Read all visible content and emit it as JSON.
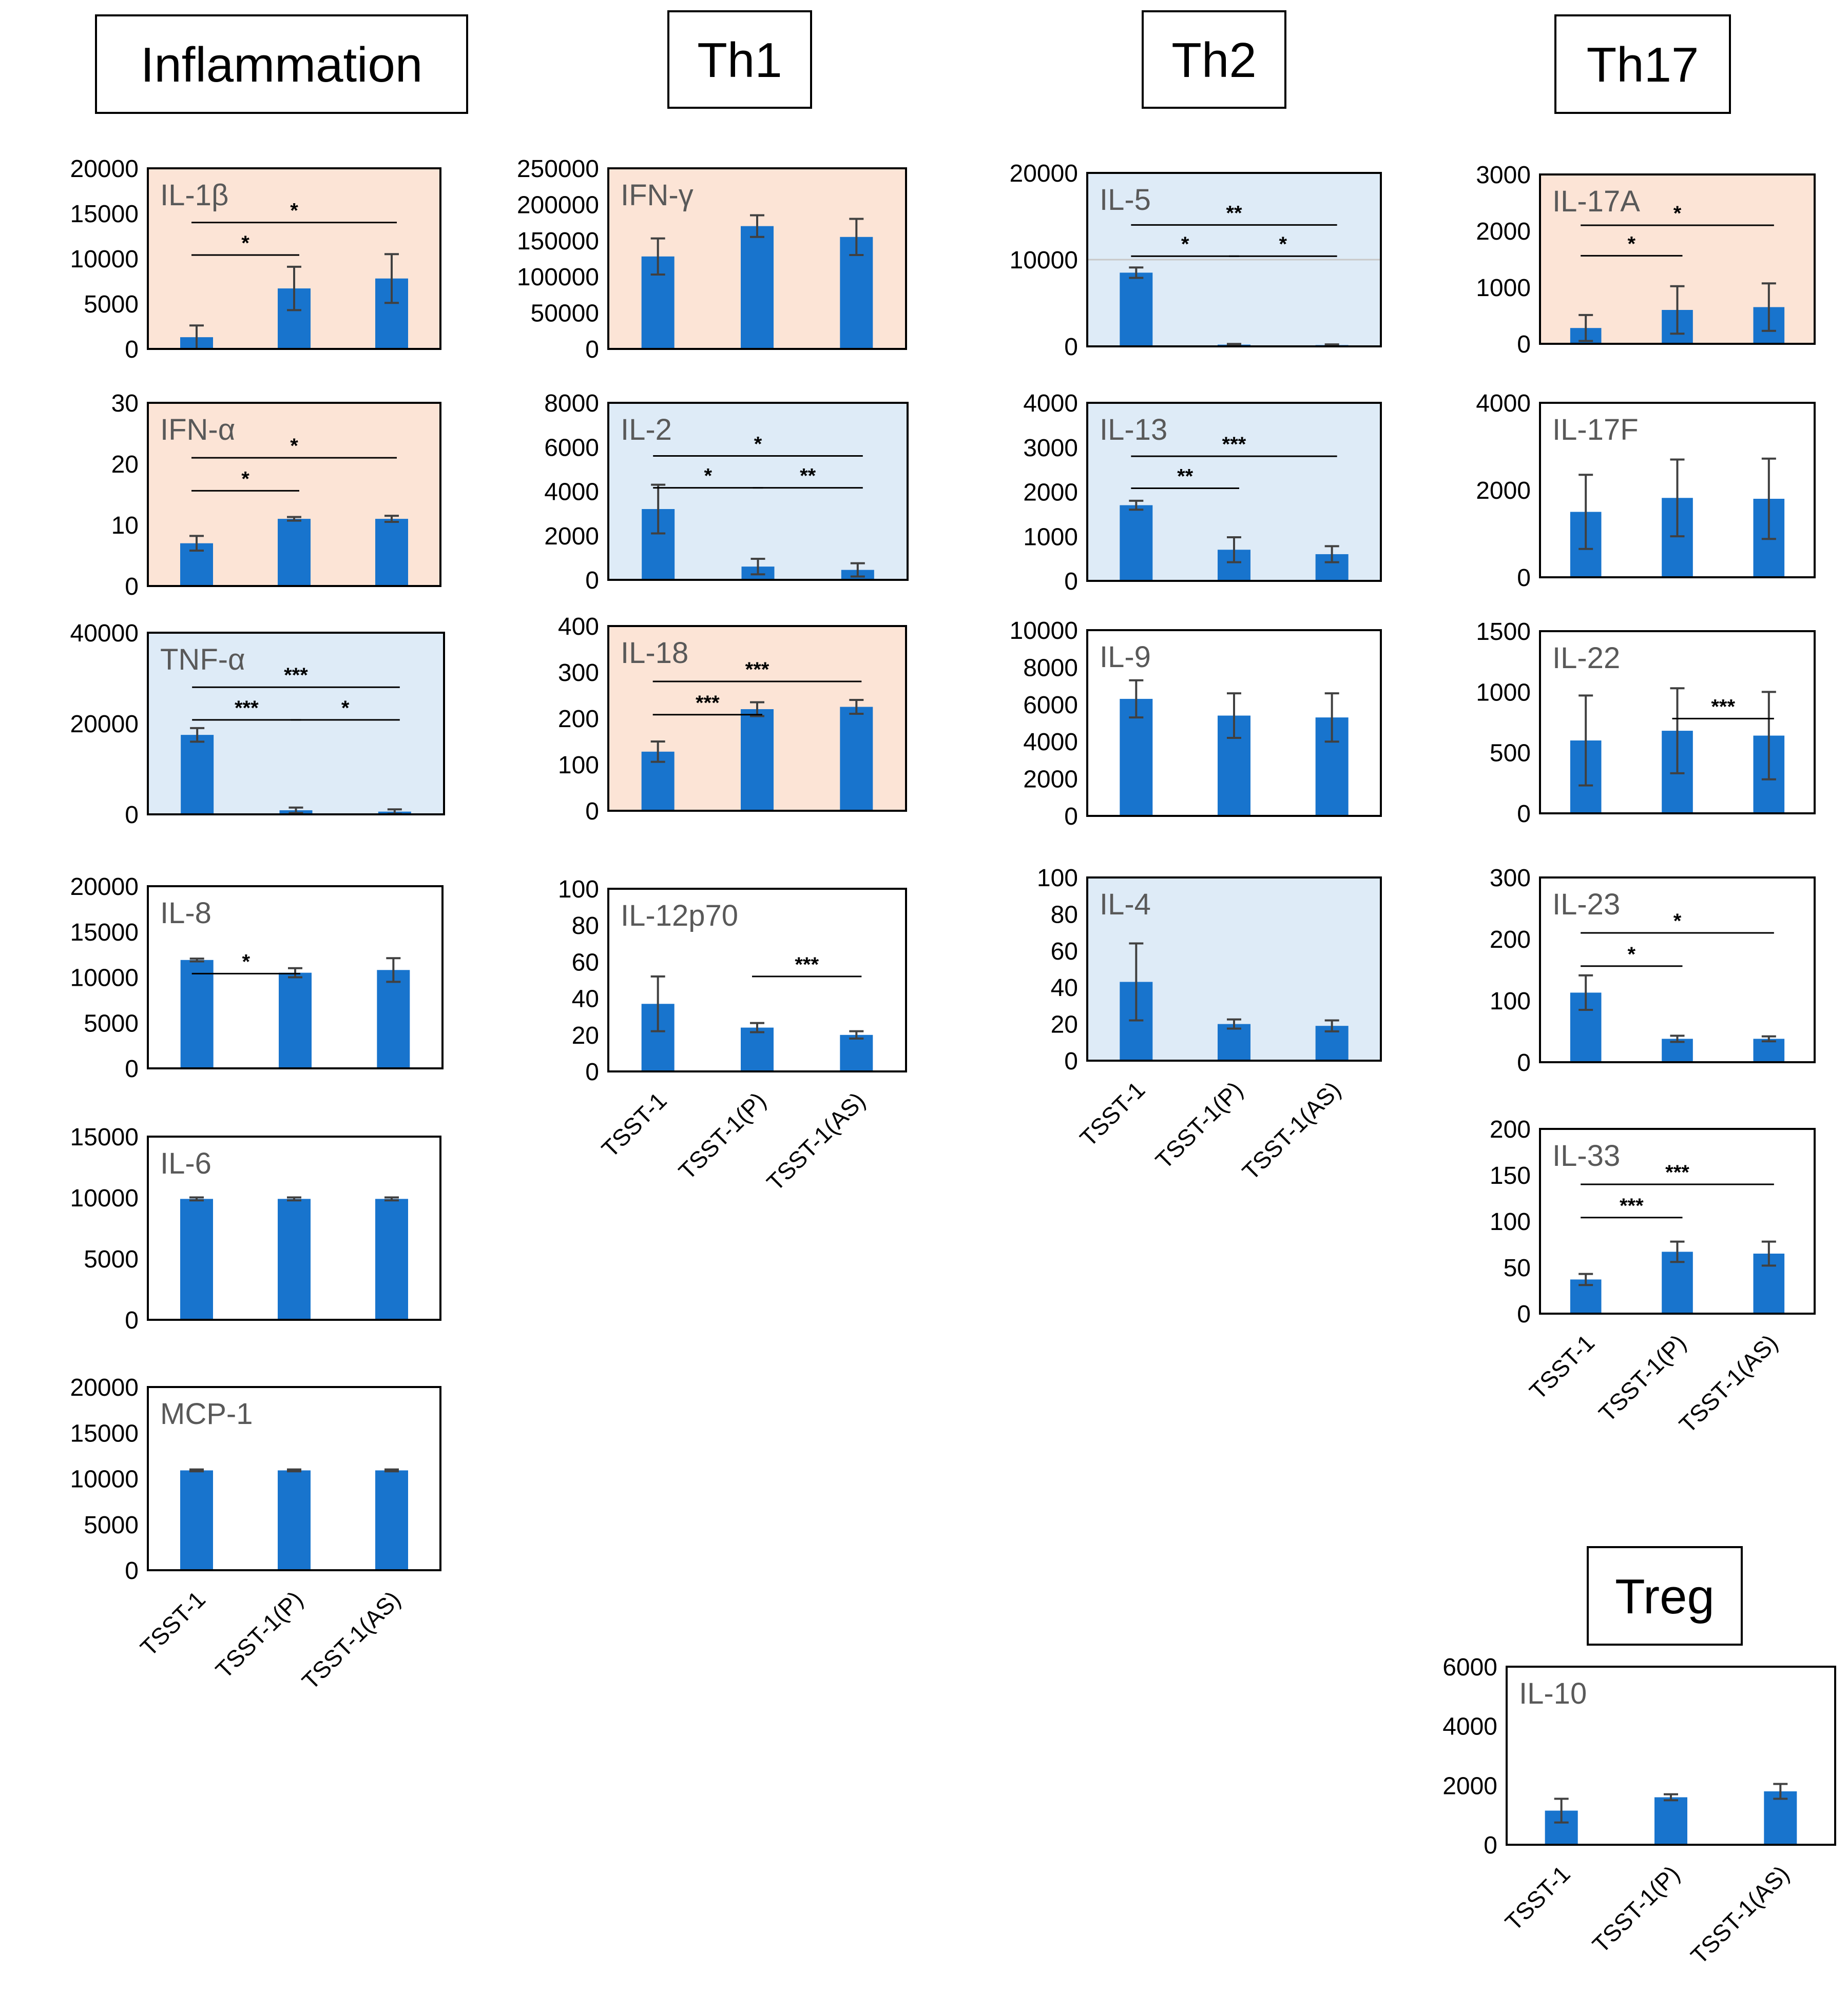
{
  "colors": {
    "bar": "#1874CD",
    "inflammatory_bg": "#FCE4D6",
    "regulatory_bg": "#DEEBF7",
    "plain_bg": "#FFFFFF",
    "frame": "#000000",
    "panel_label": "#595959",
    "axis_text": "#000000",
    "error_bar": "#404040"
  },
  "headers": [
    {
      "id": "inflammation",
      "label": "Inflammation"
    },
    {
      "id": "th1",
      "label": "Th1"
    },
    {
      "id": "th2",
      "label": "Th2"
    },
    {
      "id": "th17",
      "label": "Th17"
    },
    {
      "id": "treg",
      "label": "Treg"
    }
  ],
  "category_label_sets": [
    {
      "column": "inflammation",
      "labels": [
        "TSST-1",
        "TSST-1(P)",
        "TSST-1(AS)"
      ]
    },
    {
      "column": "th1",
      "labels": [
        "TSST-1",
        "TSST-1(P)",
        "TSST-1(AS)"
      ]
    },
    {
      "column": "th2",
      "labels": [
        "TSST-1",
        "TSST-1(P)",
        "TSST-1(AS)"
      ]
    },
    {
      "column": "th17",
      "labels": [
        "TSST-1",
        "TSST-1(P)",
        "TSST-1(AS)"
      ]
    },
    {
      "column": "treg",
      "labels": [
        "TSST-1",
        "TSST-1(P)",
        "TSST-1(AS)"
      ]
    }
  ],
  "chart_data": [
    {
      "type": "bar",
      "column": "inflammation",
      "title": "IL-1β",
      "background": "inflammatory",
      "categories": [
        "TSST-1",
        "TSST-1(P)",
        "TSST-1(AS)"
      ],
      "values": [
        1300,
        6700,
        7800
      ],
      "errors": [
        1300,
        2400,
        2700
      ],
      "ylim": [
        0,
        20000
      ],
      "yticks": [
        0,
        5000,
        10000,
        15000,
        20000
      ],
      "significance": [
        {
          "from": 0,
          "to": 1,
          "label": "*"
        },
        {
          "from": 0,
          "to": 2,
          "label": "*"
        }
      ]
    },
    {
      "type": "bar",
      "column": "inflammation",
      "title": "IFN-α",
      "background": "inflammatory",
      "categories": [
        "TSST-1",
        "TSST-1(P)",
        "TSST-1(AS)"
      ],
      "values": [
        7,
        11,
        11
      ],
      "errors": [
        1.2,
        0.3,
        0.5
      ],
      "ylim": [
        0,
        30
      ],
      "yticks": [
        0,
        10,
        20,
        30
      ],
      "significance": [
        {
          "from": 0,
          "to": 1,
          "label": "*"
        },
        {
          "from": 0,
          "to": 2,
          "label": "*"
        }
      ]
    },
    {
      "type": "bar",
      "column": "inflammation",
      "title": "TNF-α",
      "background": "regulatory",
      "categories": [
        "TSST-1",
        "TSST-1(P)",
        "TSST-1(AS)"
      ],
      "values": [
        17500,
        900,
        600
      ],
      "errors": [
        1500,
        600,
        500
      ],
      "ylim": [
        0,
        40000
      ],
      "yticks": [
        0,
        20000,
        40000
      ],
      "significance": [
        {
          "from": 0,
          "to": 1,
          "label": "***"
        },
        {
          "from": 1,
          "to": 2,
          "label": "*"
        },
        {
          "from": 0,
          "to": 2,
          "label": "***"
        }
      ]
    },
    {
      "type": "bar",
      "column": "inflammation",
      "title": "IL-8",
      "background": "plain",
      "categories": [
        "TSST-1",
        "TSST-1(P)",
        "TSST-1(AS)"
      ],
      "values": [
        11900,
        10500,
        10800
      ],
      "errors": [
        150,
        500,
        1300
      ],
      "ylim": [
        0,
        20000
      ],
      "yticks": [
        0,
        5000,
        10000,
        15000,
        20000
      ],
      "significance": [
        {
          "from": 0,
          "to": 1,
          "label": "*"
        }
      ]
    },
    {
      "type": "bar",
      "column": "inflammation",
      "title": "IL-6",
      "background": "plain",
      "categories": [
        "TSST-1",
        "TSST-1(P)",
        "TSST-1(AS)"
      ],
      "values": [
        9900,
        9900,
        9900
      ],
      "errors": [
        120,
        120,
        120
      ],
      "ylim": [
        0,
        15000
      ],
      "yticks": [
        0,
        5000,
        10000,
        15000
      ],
      "significance": []
    },
    {
      "type": "bar",
      "column": "inflammation",
      "title": "MCP-1",
      "background": "plain",
      "categories": [
        "TSST-1",
        "TSST-1(P)",
        "TSST-1(AS)"
      ],
      "values": [
        10900,
        10900,
        10900
      ],
      "errors": [
        100,
        100,
        100
      ],
      "ylim": [
        0,
        20000
      ],
      "yticks": [
        0,
        5000,
        10000,
        15000,
        20000
      ],
      "significance": []
    },
    {
      "type": "bar",
      "column": "th1",
      "title": "IFN-γ",
      "background": "inflammatory",
      "categories": [
        "TSST-1",
        "TSST-1(P)",
        "TSST-1(AS)"
      ],
      "values": [
        128000,
        170000,
        155000
      ],
      "errors": [
        25000,
        15000,
        25000
      ],
      "ylim": [
        0,
        250000
      ],
      "yticks": [
        0,
        50000,
        100000,
        150000,
        200000,
        250000
      ],
      "significance": []
    },
    {
      "type": "bar",
      "column": "th1",
      "title": "IL-2",
      "background": "regulatory",
      "categories": [
        "TSST-1",
        "TSST-1(P)",
        "TSST-1(AS)"
      ],
      "values": [
        3200,
        600,
        450
      ],
      "errors": [
        1100,
        350,
        300
      ],
      "ylim": [
        0,
        8000
      ],
      "yticks": [
        0,
        2000,
        4000,
        6000,
        8000
      ],
      "significance": [
        {
          "from": 0,
          "to": 1,
          "label": "*"
        },
        {
          "from": 1,
          "to": 2,
          "label": "**"
        },
        {
          "from": 0,
          "to": 2,
          "label": "*"
        }
      ]
    },
    {
      "type": "bar",
      "column": "th1",
      "title": "IL-18",
      "background": "inflammatory",
      "categories": [
        "TSST-1",
        "TSST-1(P)",
        "TSST-1(AS)"
      ],
      "values": [
        128,
        220,
        225
      ],
      "errors": [
        22,
        15,
        15
      ],
      "ylim": [
        0,
        400
      ],
      "yticks": [
        0,
        100,
        200,
        300,
        400
      ],
      "significance": [
        {
          "from": 0,
          "to": 1,
          "label": "***"
        },
        {
          "from": 0,
          "to": 2,
          "label": "***"
        }
      ]
    },
    {
      "type": "bar",
      "column": "th1",
      "title": "IL-12p70",
      "background": "plain",
      "categories": [
        "TSST-1",
        "TSST-1(P)",
        "TSST-1(AS)"
      ],
      "values": [
        37,
        24,
        20
      ],
      "errors": [
        15,
        2.5,
        2
      ],
      "ylim": [
        0,
        100
      ],
      "yticks": [
        0,
        20,
        40,
        60,
        80,
        100
      ],
      "significance": [
        {
          "from": 1,
          "to": 2,
          "label": "***"
        }
      ]
    },
    {
      "type": "bar",
      "column": "th2",
      "title": "IL-5",
      "background": "regulatory",
      "categories": [
        "TSST-1",
        "TSST-1(P)",
        "TSST-1(AS)"
      ],
      "values": [
        8500,
        200,
        150
      ],
      "errors": [
        600,
        80,
        80
      ],
      "ylim": [
        0,
        20000
      ],
      "yticks": [
        0,
        10000,
        20000
      ],
      "significance": [
        {
          "from": 0,
          "to": 1,
          "label": "*"
        },
        {
          "from": 1,
          "to": 2,
          "label": "*"
        },
        {
          "from": 0,
          "to": 2,
          "label": "**"
        }
      ]
    },
    {
      "type": "bar",
      "column": "th2",
      "title": "IL-13",
      "background": "regulatory",
      "categories": [
        "TSST-1",
        "TSST-1(P)",
        "TSST-1(AS)"
      ],
      "values": [
        1700,
        700,
        600
      ],
      "errors": [
        100,
        280,
        180
      ],
      "ylim": [
        0,
        4000
      ],
      "yticks": [
        0,
        1000,
        2000,
        3000,
        4000
      ],
      "significance": [
        {
          "from": 0,
          "to": 1,
          "label": "**"
        },
        {
          "from": 0,
          "to": 2,
          "label": "***"
        }
      ]
    },
    {
      "type": "bar",
      "column": "th2",
      "title": "IL-9",
      "background": "plain",
      "categories": [
        "TSST-1",
        "TSST-1(P)",
        "TSST-1(AS)"
      ],
      "values": [
        6300,
        5400,
        5300
      ],
      "errors": [
        1000,
        1200,
        1300
      ],
      "ylim": [
        0,
        10000
      ],
      "yticks": [
        0,
        2000,
        4000,
        6000,
        8000,
        10000
      ],
      "significance": []
    },
    {
      "type": "bar",
      "column": "th2",
      "title": "IL-4",
      "background": "regulatory",
      "categories": [
        "TSST-1",
        "TSST-1(P)",
        "TSST-1(AS)"
      ],
      "values": [
        43,
        20,
        19
      ],
      "errors": [
        21,
        2.5,
        3
      ],
      "ylim": [
        0,
        100
      ],
      "yticks": [
        0,
        20,
        40,
        60,
        80,
        100
      ],
      "significance": []
    },
    {
      "type": "bar",
      "column": "th17",
      "title": "IL-17A",
      "background": "inflammatory",
      "categories": [
        "TSST-1",
        "TSST-1(P)",
        "TSST-1(AS)"
      ],
      "values": [
        280,
        600,
        650
      ],
      "errors": [
        230,
        420,
        420
      ],
      "ylim": [
        0,
        3000
      ],
      "yticks": [
        0,
        1000,
        2000,
        3000
      ],
      "significance": [
        {
          "from": 0,
          "to": 1,
          "label": "*"
        },
        {
          "from": 0,
          "to": 2,
          "label": "*"
        }
      ]
    },
    {
      "type": "bar",
      "column": "th17",
      "title": "IL-17F",
      "background": "plain",
      "categories": [
        "TSST-1",
        "TSST-1(P)",
        "TSST-1(AS)"
      ],
      "values": [
        1500,
        1820,
        1800
      ],
      "errors": [
        850,
        880,
        920
      ],
      "ylim": [
        0,
        4000
      ],
      "yticks": [
        0,
        2000,
        4000
      ],
      "significance": []
    },
    {
      "type": "bar",
      "column": "th17",
      "title": "IL-22",
      "background": "plain",
      "categories": [
        "TSST-1",
        "TSST-1(P)",
        "TSST-1(AS)"
      ],
      "values": [
        600,
        680,
        640
      ],
      "errors": [
        370,
        350,
        360
      ],
      "ylim": [
        0,
        1500
      ],
      "yticks": [
        0,
        500,
        1000,
        1500
      ],
      "significance": [
        {
          "from": 1,
          "to": 2,
          "label": "***"
        }
      ]
    },
    {
      "type": "bar",
      "column": "th17",
      "title": "IL-23",
      "background": "plain",
      "categories": [
        "TSST-1",
        "TSST-1(P)",
        "TSST-1(AS)"
      ],
      "values": [
        113,
        38,
        38
      ],
      "errors": [
        28,
        5,
        4
      ],
      "ylim": [
        0,
        300
      ],
      "yticks": [
        0,
        100,
        200,
        300
      ],
      "significance": [
        {
          "from": 0,
          "to": 1,
          "label": "*"
        },
        {
          "from": 0,
          "to": 2,
          "label": "*"
        }
      ]
    },
    {
      "type": "bar",
      "column": "th17",
      "title": "IL-33",
      "background": "plain",
      "categories": [
        "TSST-1",
        "TSST-1(P)",
        "TSST-1(AS)"
      ],
      "values": [
        37,
        67,
        65
      ],
      "errors": [
        6,
        11,
        13
      ],
      "ylim": [
        0,
        200
      ],
      "yticks": [
        0,
        50,
        100,
        150,
        200
      ],
      "significance": [
        {
          "from": 0,
          "to": 1,
          "label": "***"
        },
        {
          "from": 0,
          "to": 2,
          "label": "***"
        }
      ]
    },
    {
      "type": "bar",
      "column": "treg",
      "title": "IL-10",
      "background": "plain",
      "categories": [
        "TSST-1",
        "TSST-1(P)",
        "TSST-1(AS)"
      ],
      "values": [
        1150,
        1600,
        1800
      ],
      "errors": [
        400,
        100,
        250
      ],
      "ylim": [
        0,
        6000
      ],
      "yticks": [
        0,
        2000,
        4000,
        6000
      ],
      "significance": []
    }
  ]
}
